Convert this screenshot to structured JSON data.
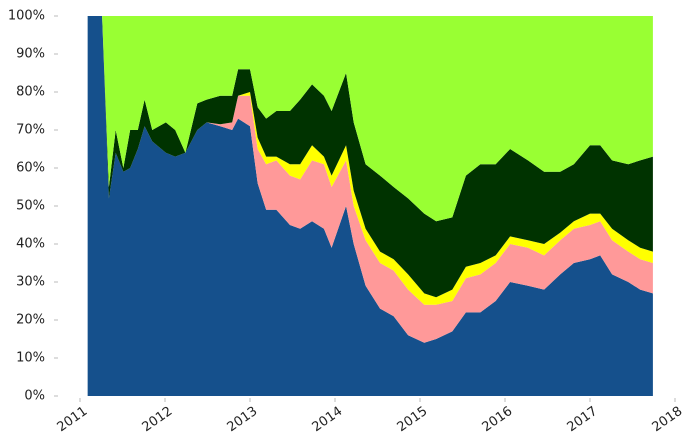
{
  "chart_data": {
    "type": "stacked-area-100",
    "x": [
      2011.09,
      2011.26,
      2011.34,
      2011.42,
      2011.51,
      2011.59,
      2011.68,
      2011.76,
      2011.85,
      2012.01,
      2012.12,
      2012.24,
      2012.38,
      2012.49,
      2012.65,
      2012.79,
      2012.86,
      2013.0,
      2013.09,
      2013.19,
      2013.31,
      2013.47,
      2013.59,
      2013.73,
      2013.87,
      2013.96,
      2014.13,
      2014.22,
      2014.36,
      2014.53,
      2014.69,
      2014.86,
      2015.05,
      2015.19,
      2015.38,
      2015.54,
      2015.71,
      2015.89,
      2016.06,
      2016.27,
      2016.46,
      2016.65,
      2016.81,
      2017.0,
      2017.12,
      2017.26,
      2017.45,
      2017.59,
      2017.74
    ],
    "series": [
      {
        "color": "#15508c",
        "values": [
          100,
          100,
          52,
          64,
          59,
          60,
          65,
          71,
          67,
          64,
          63,
          64,
          70,
          72,
          71,
          70,
          73,
          71,
          56,
          49,
          49,
          45,
          44,
          46,
          44,
          39,
          50,
          40,
          29,
          23,
          21,
          16,
          14,
          15,
          17,
          22,
          22,
          25,
          30,
          29,
          28,
          32,
          35,
          36,
          37,
          32,
          30,
          28,
          27
        ]
      },
      {
        "color": "#ff9999",
        "values": [
          0,
          0,
          0,
          0,
          0,
          0,
          0,
          0,
          0,
          0,
          0,
          0,
          0,
          0,
          0.5,
          2,
          6,
          8,
          9,
          12,
          13,
          13,
          13,
          16,
          17,
          16,
          12,
          10,
          12,
          12,
          12,
          12,
          10,
          9,
          8,
          9,
          10,
          10,
          10,
          10,
          9,
          9,
          9,
          9,
          9,
          9,
          8,
          8,
          8
        ]
      },
      {
        "color": "#ffff00",
        "values": [
          0,
          0,
          0,
          0,
          0,
          0,
          0,
          0,
          0,
          0,
          0,
          0,
          0,
          0,
          0,
          0,
          0,
          1,
          3,
          2,
          1,
          3,
          4,
          4,
          2,
          3,
          4,
          4,
          3,
          3,
          3,
          4,
          3,
          2,
          3,
          3,
          3,
          2,
          2,
          2,
          3,
          2,
          2,
          3,
          2,
          3,
          3,
          3,
          3
        ]
      },
      {
        "color": "#003300",
        "values": [
          0,
          0,
          3,
          6,
          1,
          10,
          5,
          7,
          3,
          8,
          7,
          0,
          7,
          6,
          7.5,
          7,
          7,
          6,
          8,
          10,
          12,
          14,
          17,
          16,
          16,
          17,
          19,
          18,
          17,
          20,
          19,
          20,
          21,
          20,
          19,
          24,
          26,
          24,
          23,
          21,
          19,
          16,
          15,
          18,
          18,
          18,
          20,
          23,
          25
        ]
      },
      {
        "color": "#99ff33",
        "values": [
          0,
          0,
          45,
          30,
          40,
          30,
          30,
          22,
          30,
          28,
          30,
          36,
          23,
          22,
          21,
          21,
          14,
          14,
          24,
          27,
          25,
          25,
          22,
          18,
          21,
          25,
          15,
          28,
          39,
          42,
          45,
          48,
          52,
          54,
          53,
          42,
          39,
          39,
          35,
          38,
          41,
          41,
          39,
          34,
          34,
          38,
          39,
          38,
          37
        ]
      }
    ],
    "xlim": [
      2011,
      2018
    ],
    "xticks": [
      2011,
      2012,
      2013,
      2014,
      2015,
      2016,
      2017,
      2018
    ],
    "ylim": [
      0,
      100
    ],
    "yticks": [
      {
        "value": 0,
        "label": "0%"
      },
      {
        "value": 10,
        "label": "10%"
      },
      {
        "value": 20,
        "label": "20%"
      },
      {
        "value": 30,
        "label": "30%"
      },
      {
        "value": 40,
        "label": "40%"
      },
      {
        "value": 50,
        "label": "50%"
      },
      {
        "value": 60,
        "label": "60%"
      },
      {
        "value": 70,
        "label": "70%"
      },
      {
        "value": 80,
        "label": "80%"
      },
      {
        "value": 90,
        "label": "90%"
      },
      {
        "value": 100,
        "label": "100%"
      }
    ],
    "grid": false
  }
}
